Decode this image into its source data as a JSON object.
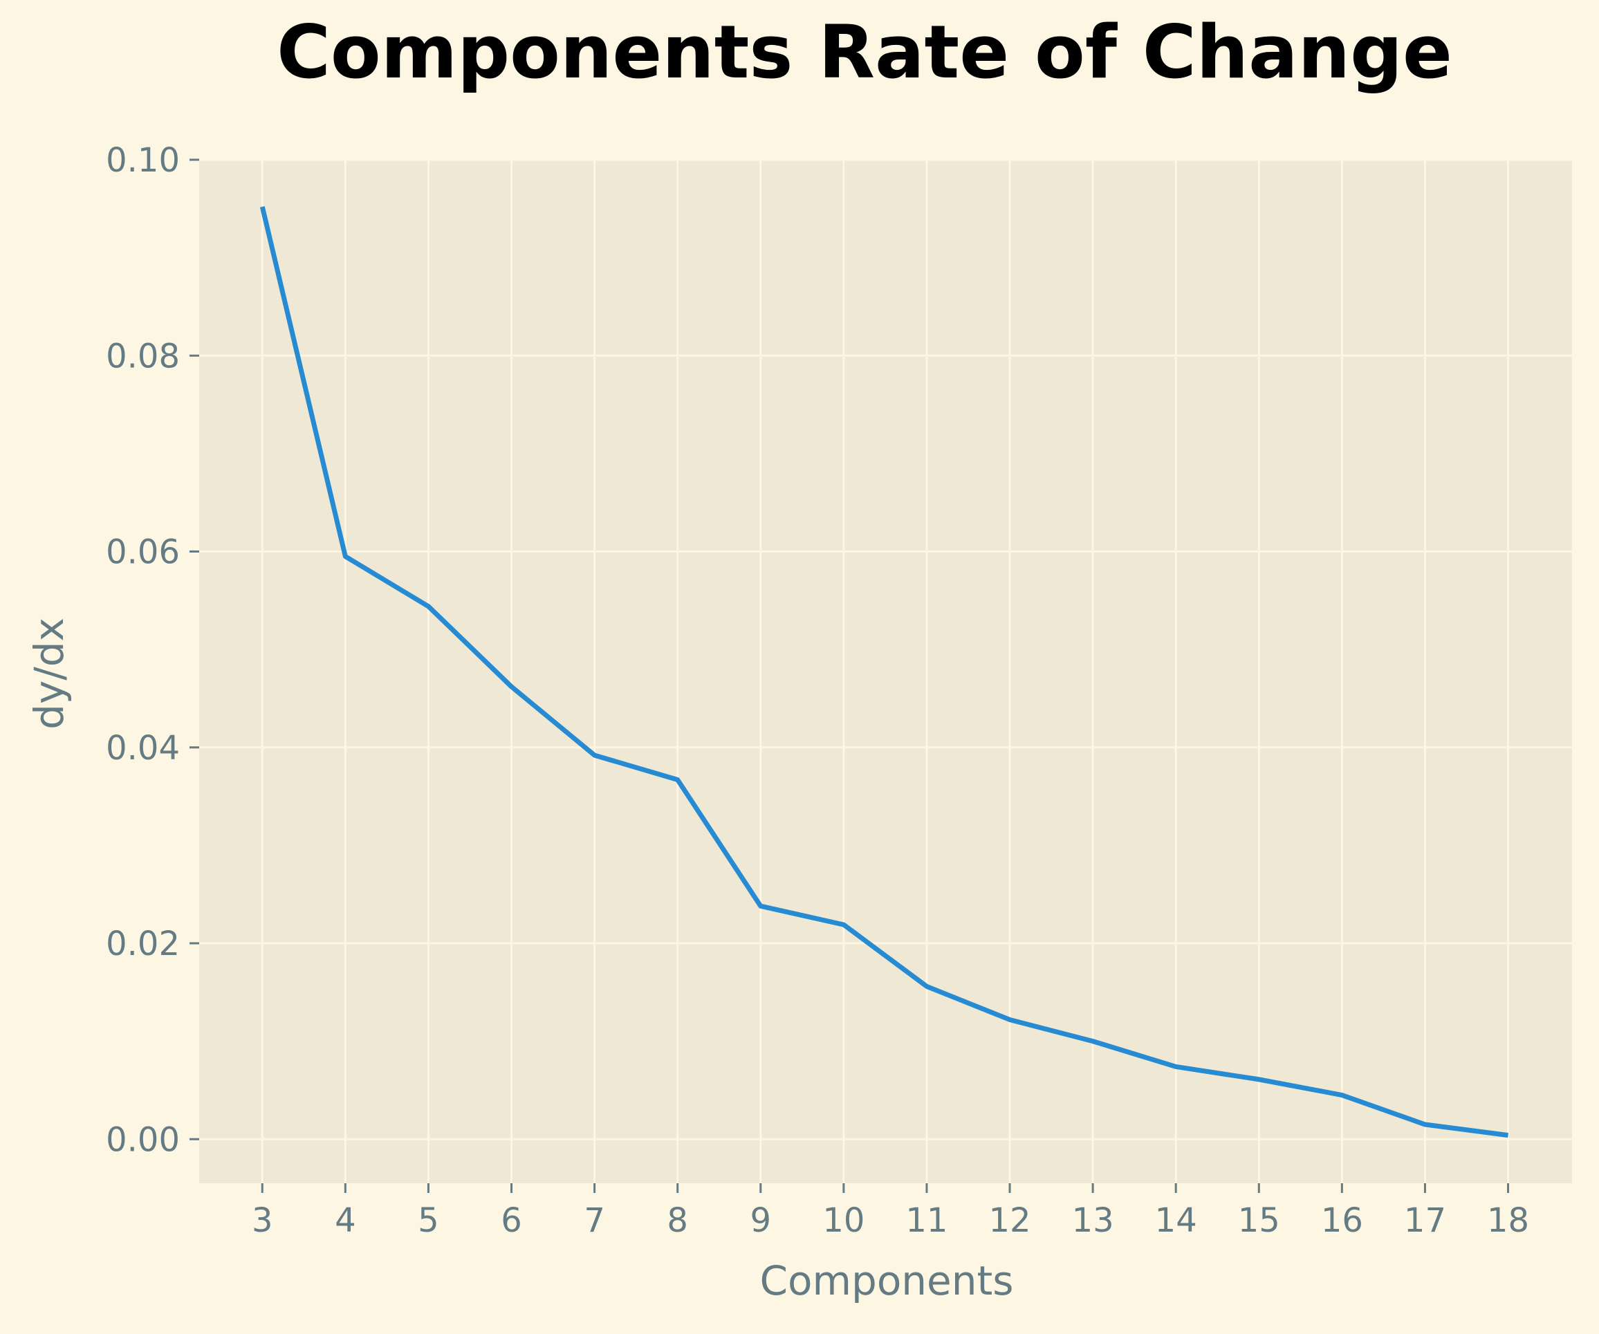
{
  "chart_data": {
    "type": "line",
    "title": "Components Rate of Change",
    "xlabel": "Components",
    "ylabel": "dy/dx",
    "x": [
      3,
      4,
      5,
      6,
      7,
      8,
      9,
      10,
      11,
      12,
      13,
      14,
      15,
      16,
      17,
      18
    ],
    "series": [
      {
        "values": [
          0.0952,
          0.0595,
          0.0544,
          0.0462,
          0.0392,
          0.0367,
          0.0238,
          0.0219,
          0.0156,
          0.0122,
          0.01,
          0.0074,
          0.0061,
          0.0045,
          0.0015,
          0.0004
        ],
        "color": "#268bd2"
      }
    ],
    "xticks": [
      "3",
      "4",
      "5",
      "6",
      "7",
      "8",
      "9",
      "10",
      "11",
      "12",
      "13",
      "14",
      "15",
      "16",
      "17",
      "18"
    ],
    "yticks": [
      "0.00",
      "0.02",
      "0.04",
      "0.06",
      "0.08",
      "0.10"
    ],
    "ytick_values": [
      0.0,
      0.02,
      0.04,
      0.06,
      0.08,
      0.1
    ],
    "xlim": [
      2.24,
      18.77
    ],
    "ylim": [
      -0.0045,
      0.1
    ],
    "grid": true,
    "colors": {
      "figure_background": "#fdf6e3",
      "plot_background": "#eee8d5",
      "grid": "#fdf6e3",
      "tick_text": "#657b83",
      "title": "#000000"
    }
  }
}
